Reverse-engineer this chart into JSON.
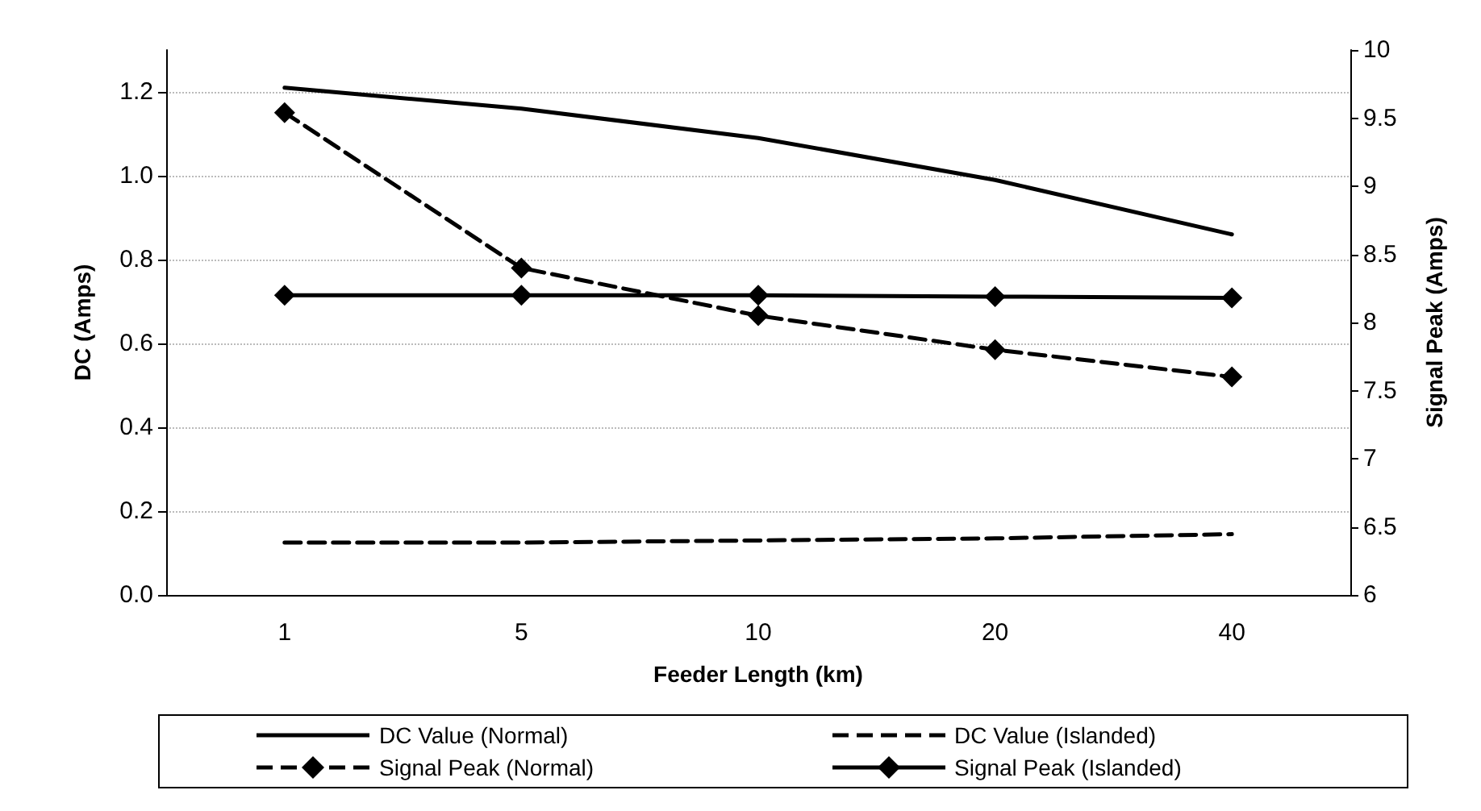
{
  "chart_data": {
    "type": "line",
    "xlabel": "Feeder Length (km)",
    "ylabel": "DC (Amps)",
    "y2label": "Signal Peak (Amps)",
    "categories": [
      "1",
      "5",
      "10",
      "20",
      "40"
    ],
    "series": [
      {
        "name": "DC Value (Normal)",
        "color": "#000000",
        "values": [
          1.21,
          1.16,
          1.09,
          0.99,
          0.86
        ],
        "line_style": "solid",
        "marker": "none"
      },
      {
        "name": "DC Value (Islanded)",
        "color": "#000000",
        "values": [
          0.125,
          0.125,
          0.13,
          0.135,
          0.145
        ],
        "line_style": "dashed",
        "marker": "none"
      },
      {
        "name": "Signal Peak (Normal)",
        "color": "#000000",
        "values": [
          9.54,
          8.4,
          8.05,
          7.8,
          7.6
        ],
        "line_style": "dashed",
        "marker": "diamond",
        "axis": "y2"
      },
      {
        "name": "Signal Peak (Islanded)",
        "color": "#000000",
        "values": [
          8.2,
          8.2,
          8.2,
          8.19,
          8.18
        ],
        "line_style": "solid",
        "marker": "diamond",
        "axis": "y2"
      }
    ],
    "ylim": [
      0,
      1.3
    ],
    "yticks": [
      {
        "value": 0,
        "label": "0.0"
      },
      {
        "value": 0.2,
        "label": "0.2"
      },
      {
        "value": 0.4,
        "label": "0.4"
      },
      {
        "value": 0.6,
        "label": "0.6"
      },
      {
        "value": 0.8,
        "label": "0.8"
      },
      {
        "value": 1,
        "label": "1.0"
      },
      {
        "value": 1.2,
        "label": "1.2"
      }
    ],
    "y2lim": [
      6,
      10
    ],
    "y2ticks": [
      6,
      6.5,
      7,
      7.5,
      8,
      8.5,
      9,
      9.5,
      10
    ],
    "grid": "y",
    "legend": "bottom"
  }
}
